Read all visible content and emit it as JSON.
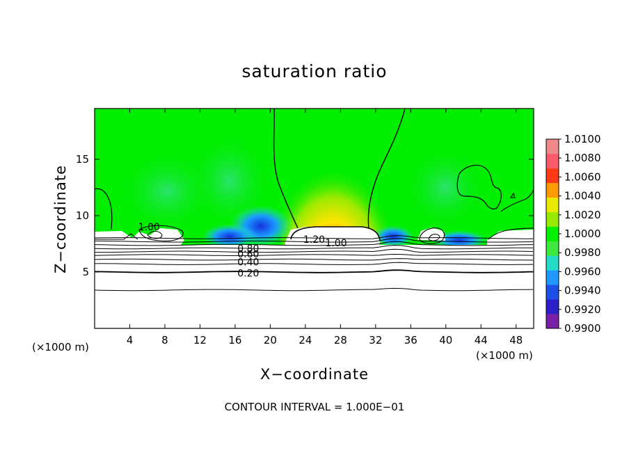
{
  "chart_data": {
    "type": "heatmap",
    "title": "saturation ratio",
    "xlabel": "X−coordinate",
    "ylabel": "Z−coordinate",
    "x_unit_left": "(×1000 m)",
    "x_unit_right": "(×1000 m)",
    "footer": "CONTOUR INTERVAL = 1.000E−01",
    "xlim": [
      0,
      50
    ],
    "ylim": [
      0,
      19.5
    ],
    "x_ticks": [
      4,
      8,
      12,
      16,
      20,
      24,
      28,
      32,
      36,
      40,
      44,
      48
    ],
    "x_tick_labels": [
      "4",
      "8",
      "12",
      "16",
      "20",
      "24",
      "28",
      "32",
      "36",
      "40",
      "44",
      "48"
    ],
    "y_ticks": [
      5,
      10,
      15
    ],
    "y_tick_labels": [
      "5",
      "10",
      "15"
    ],
    "colorbar": {
      "levels": [
        0.99,
        0.992,
        0.994,
        0.996,
        0.998,
        1.0,
        1.002,
        1.004,
        1.006,
        1.008,
        1.01
      ],
      "labels": [
        "1.0100",
        "1.0080",
        "1.0060",
        "1.0040",
        "1.0020",
        "1.0000",
        "0.9980",
        "0.9960",
        "0.9940",
        "0.9920",
        "0.9900"
      ],
      "colors": [
        "#7a1fa8",
        "#2a1fc8",
        "#1b4fe8",
        "#1f98ff",
        "#22dcc8",
        "#3fe83c",
        "#00f000",
        "#98ea00",
        "#e8e800",
        "#ff9a00",
        "#ff3a16",
        "#ff5a6a",
        "#f08a8a"
      ]
    },
    "contour_labels": [
      {
        "text": "1.00",
        "x": 6.2,
        "y": 9.0
      },
      {
        "text": "1.20",
        "x": 25.0,
        "y": 7.9
      },
      {
        "text": "1.00",
        "x": 27.5,
        "y": 7.6
      },
      {
        "text": "0.80",
        "x": 17.5,
        "y": 7.1
      },
      {
        "text": "0.60",
        "x": 17.5,
        "y": 6.6
      },
      {
        "text": "0.40",
        "x": 17.5,
        "y": 5.9
      },
      {
        "text": "0.20",
        "x": 17.5,
        "y": 4.9
      }
    ],
    "horizontal_contours_z": [
      8.0,
      7.7,
      7.4,
      7.1,
      6.8,
      6.5,
      6.1,
      5.7,
      5.0,
      3.4
    ]
  }
}
